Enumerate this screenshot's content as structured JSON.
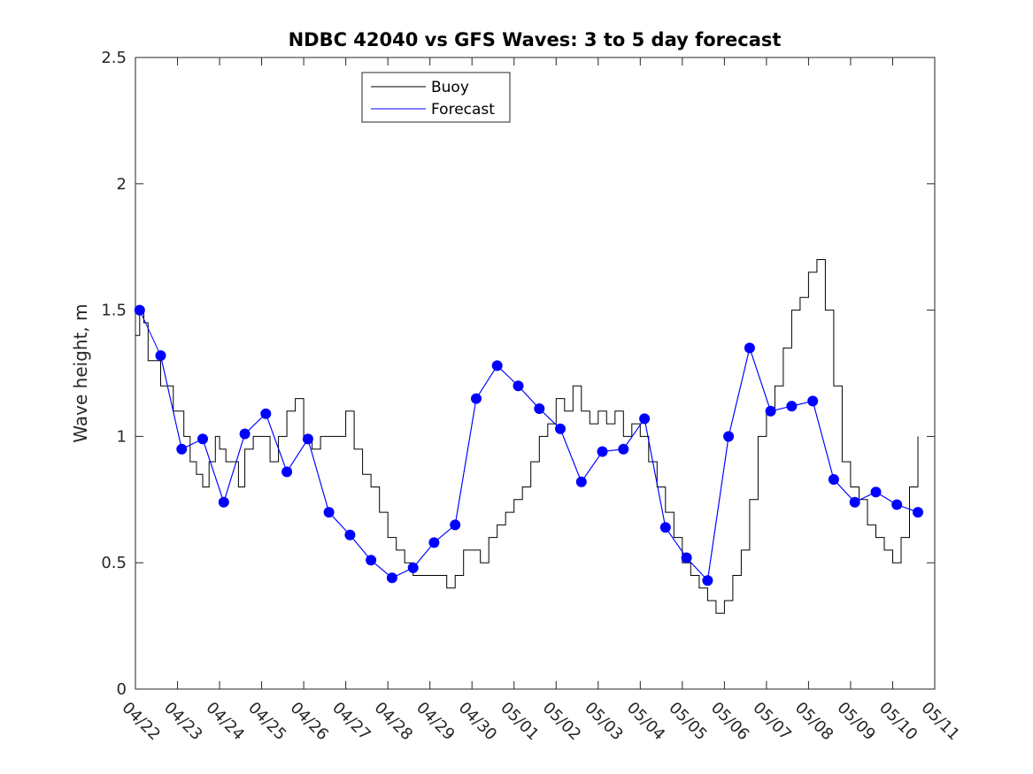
{
  "chart_data": {
    "type": "line",
    "title": "NDBC 42040 vs GFS Waves: 3 to 5 day forecast",
    "xlabel": "",
    "ylabel": "Wave height, m",
    "ylim": [
      0,
      2.5
    ],
    "yticks": [
      0,
      0.5,
      1,
      1.5,
      2,
      2.5
    ],
    "ytick_labels": [
      "0",
      "0.5",
      "1",
      "1.5",
      "2",
      "2.5"
    ],
    "xlim_days": [
      0,
      19
    ],
    "xtick_labels": [
      "04/22",
      "04/23",
      "04/24",
      "04/25",
      "04/26",
      "04/27",
      "04/28",
      "04/29",
      "04/30",
      "05/01",
      "05/02",
      "05/03",
      "05/04",
      "05/05",
      "05/06",
      "05/07",
      "05/08",
      "05/09",
      "05/10",
      "05/11"
    ],
    "legend": {
      "position": "top-center",
      "entries": [
        {
          "name": "Buoy",
          "color": "#000000"
        },
        {
          "name": "Forecast",
          "color": "#0000ff"
        }
      ]
    },
    "colors": {
      "buoy": "#000000",
      "forecast": "#0000ff",
      "markers": "#0000ff"
    },
    "buoy": {
      "x": [
        0.0,
        0.1,
        0.2,
        0.3,
        0.45,
        0.6,
        0.75,
        0.9,
        1.0,
        1.15,
        1.3,
        1.45,
        1.6,
        1.75,
        1.9,
        2.0,
        2.15,
        2.3,
        2.45,
        2.6,
        2.8,
        3.0,
        3.2,
        3.4,
        3.6,
        3.8,
        4.0,
        4.2,
        4.4,
        4.6,
        4.8,
        5.0,
        5.2,
        5.4,
        5.6,
        5.8,
        6.0,
        6.2,
        6.4,
        6.6,
        6.8,
        7.0,
        7.2,
        7.4,
        7.6,
        7.8,
        8.0,
        8.2,
        8.4,
        8.6,
        8.8,
        9.0,
        9.2,
        9.4,
        9.6,
        9.8,
        10.0,
        10.2,
        10.4,
        10.6,
        10.8,
        11.0,
        11.2,
        11.4,
        11.6,
        11.8,
        12.0,
        12.2,
        12.4,
        12.6,
        12.8,
        13.0,
        13.2,
        13.4,
        13.6,
        13.8,
        14.0,
        14.2,
        14.4,
        14.6,
        14.8,
        15.0,
        15.2,
        15.4,
        15.6,
        15.8,
        16.0,
        16.2,
        16.4,
        16.6,
        16.8,
        17.0,
        17.2,
        17.4,
        17.6,
        17.8,
        18.0,
        18.2,
        18.4,
        18.6
      ],
      "y": [
        1.4,
        1.5,
        1.45,
        1.3,
        1.3,
        1.2,
        1.2,
        1.1,
        1.1,
        1.0,
        0.9,
        0.85,
        0.8,
        0.9,
        1.0,
        0.95,
        0.9,
        0.9,
        0.8,
        0.95,
        1.0,
        1.0,
        0.9,
        1.0,
        1.1,
        1.15,
        1.0,
        0.95,
        1.0,
        1.0,
        1.0,
        1.1,
        0.95,
        0.85,
        0.8,
        0.7,
        0.6,
        0.55,
        0.5,
        0.45,
        0.45,
        0.45,
        0.45,
        0.4,
        0.45,
        0.55,
        0.55,
        0.5,
        0.6,
        0.65,
        0.7,
        0.75,
        0.8,
        0.9,
        1.0,
        1.05,
        1.15,
        1.1,
        1.2,
        1.1,
        1.05,
        1.1,
        1.05,
        1.1,
        1.0,
        1.05,
        1.0,
        0.9,
        0.8,
        0.7,
        0.6,
        0.5,
        0.45,
        0.4,
        0.35,
        0.3,
        0.35,
        0.45,
        0.55,
        0.75,
        1.0,
        1.1,
        1.2,
        1.35,
        1.5,
        1.55,
        1.65,
        1.7,
        1.5,
        1.2,
        0.9,
        0.8,
        0.75,
        0.65,
        0.6,
        0.55,
        0.5,
        0.6,
        0.8,
        1.0
      ]
    },
    "forecast_markers": {
      "x": [
        0.1,
        0.6,
        1.1,
        1.6,
        2.1,
        2.6,
        3.1,
        3.6,
        4.1,
        4.6,
        5.1,
        5.6,
        6.1,
        6.6,
        7.1,
        7.6,
        8.1,
        8.6,
        9.1,
        9.6,
        10.1,
        10.6,
        11.1,
        11.6,
        12.1,
        12.6,
        13.1,
        13.6,
        14.1,
        14.6,
        15.1,
        15.6,
        16.1,
        16.6,
        17.1,
        17.6,
        18.1,
        18.6
      ],
      "y": [
        1.5,
        1.32,
        0.95,
        0.99,
        0.74,
        1.01,
        1.09,
        0.86,
        0.99,
        0.7,
        0.61,
        0.51,
        0.44,
        0.48,
        0.58,
        0.65,
        1.15,
        1.28,
        1.2,
        1.11,
        1.03,
        0.82,
        0.94,
        0.95,
        1.07,
        0.64,
        0.52,
        0.43,
        1.0,
        1.35,
        1.1,
        1.12,
        1.14,
        0.83,
        0.74,
        0.78,
        0.73,
        0.7
      ]
    }
  }
}
